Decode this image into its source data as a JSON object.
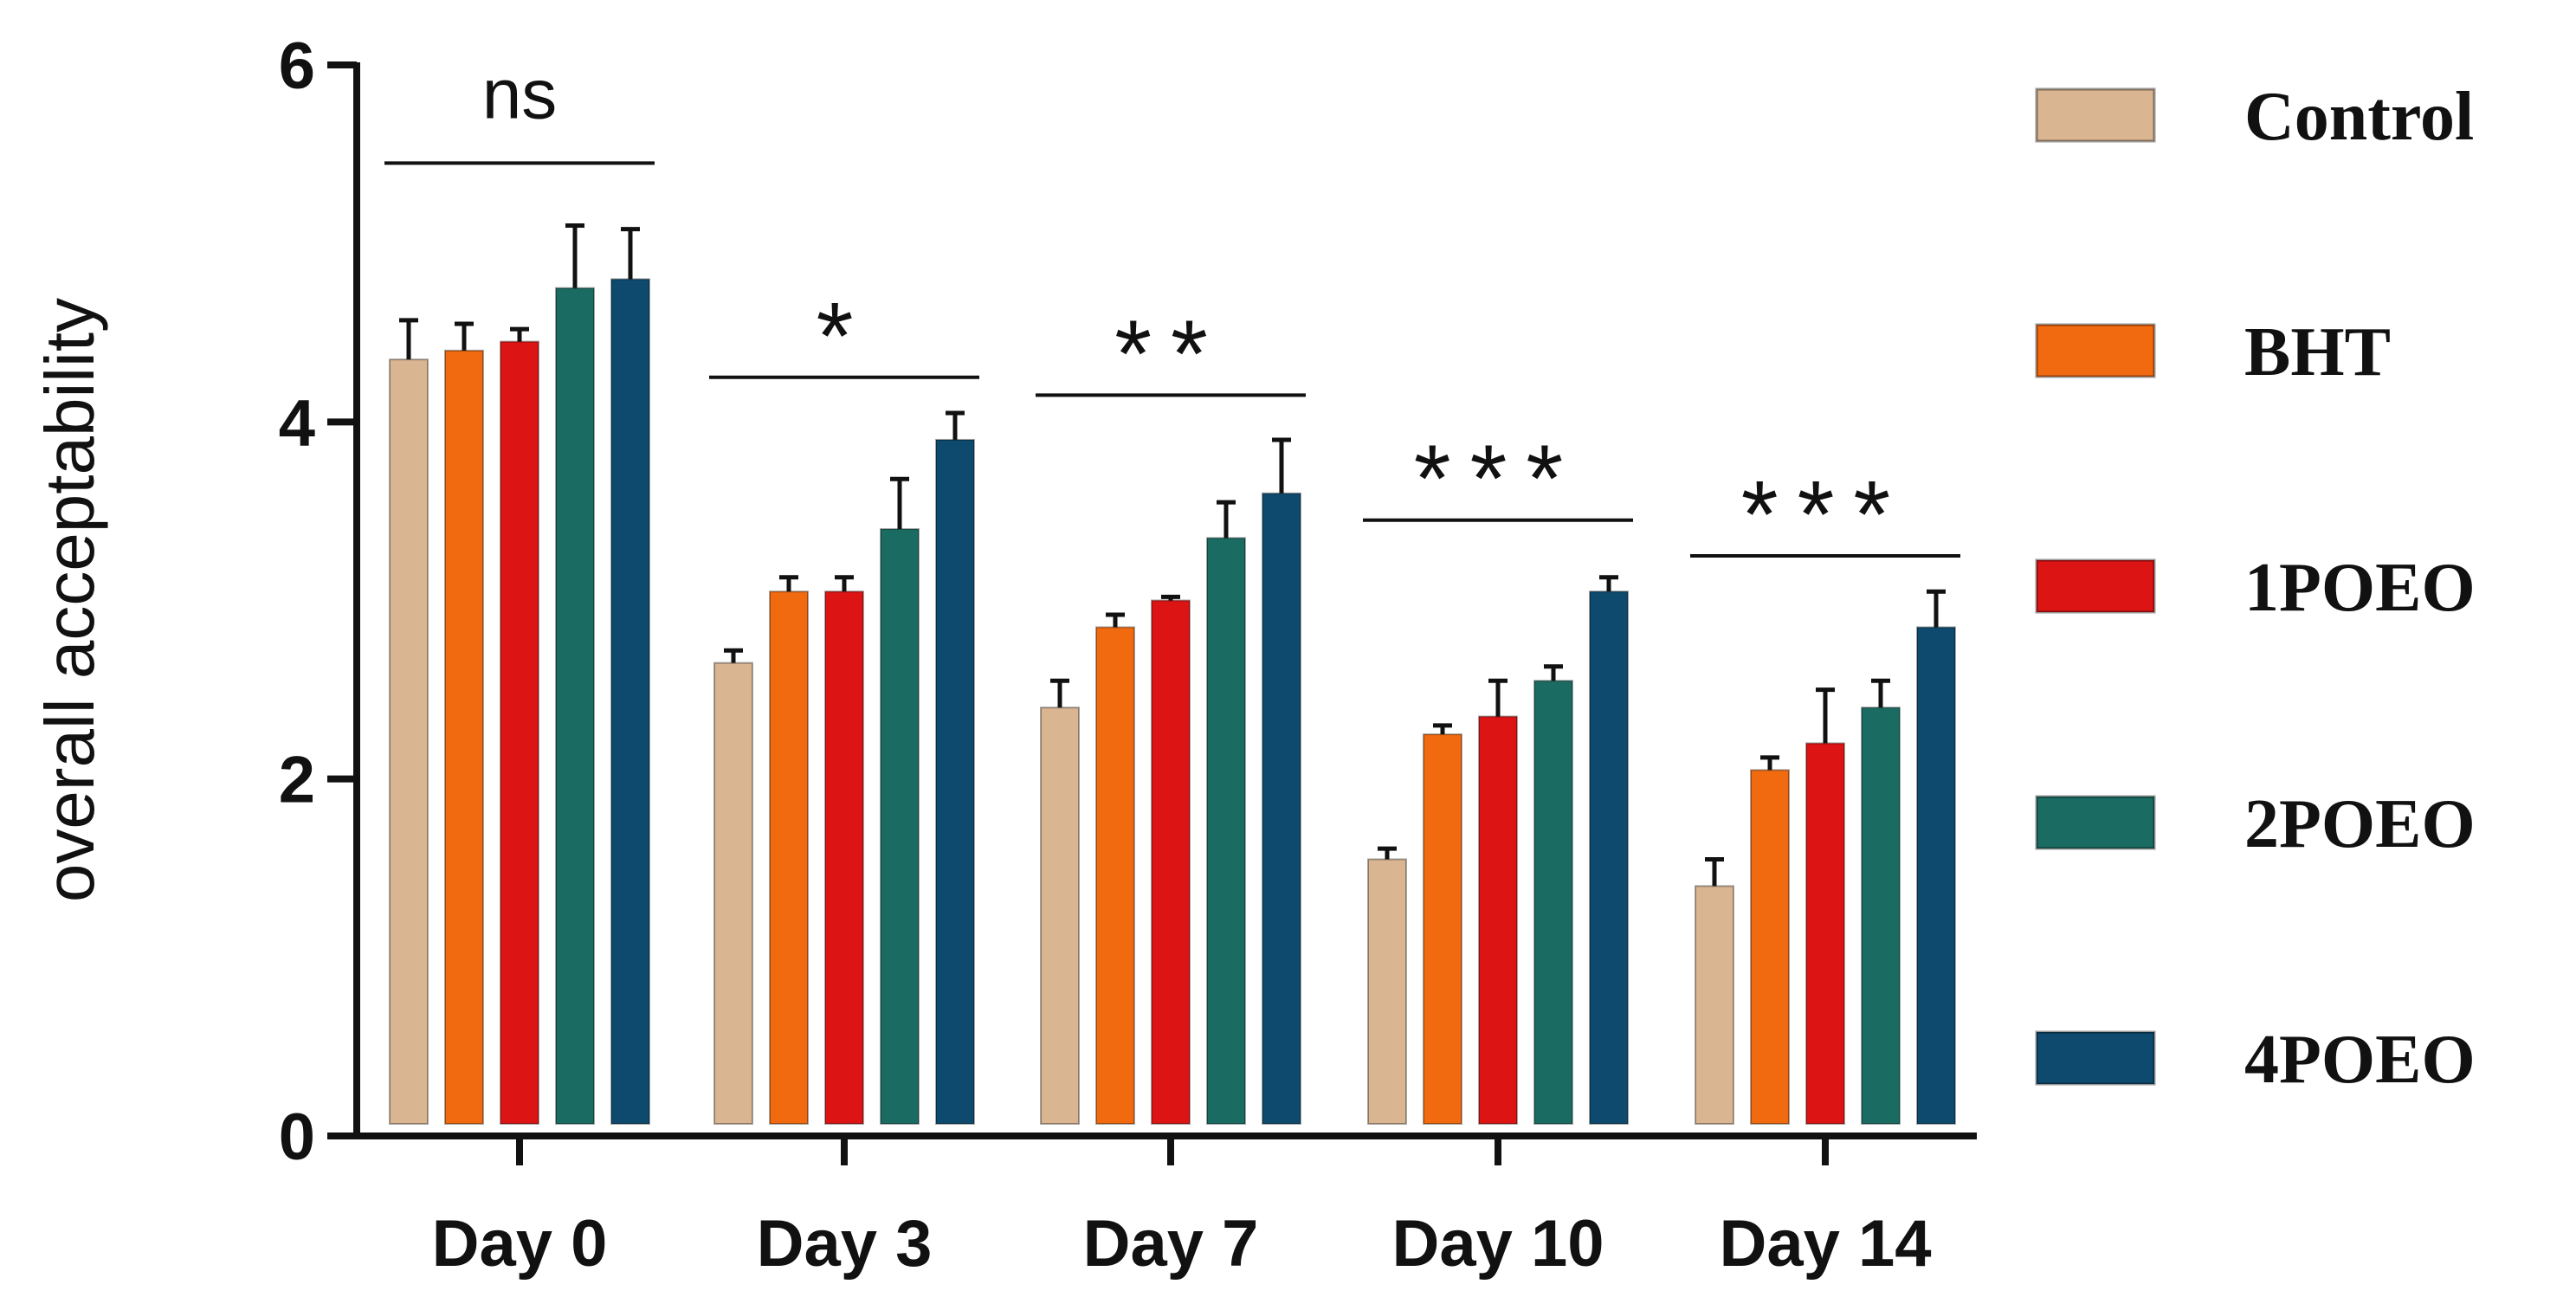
{
  "chart_data": {
    "type": "bar",
    "title": "",
    "xlabel": "",
    "ylabel": "overall acceptability",
    "ylim": [
      0,
      6
    ],
    "yticks": [
      0,
      2,
      4,
      6
    ],
    "grid": false,
    "legend_position": "right",
    "categories": [
      "Day 0",
      "Day 3",
      "Day 7",
      "Day 10",
      "Day 14"
    ],
    "series": [
      {
        "name": "Control",
        "color": "#d9b591",
        "values": [
          4.35,
          2.65,
          2.4,
          1.55,
          1.4
        ],
        "errors": [
          0.22,
          0.07,
          0.15,
          0.06,
          0.15
        ]
      },
      {
        "name": "BHT",
        "color": "#f26a0f",
        "values": [
          4.4,
          3.05,
          2.85,
          2.25,
          2.05
        ],
        "errors": [
          0.15,
          0.08,
          0.07,
          0.05,
          0.07
        ]
      },
      {
        "name": "1POEO",
        "color": "#dc1414",
        "values": [
          4.45,
          3.05,
          3.0,
          2.35,
          2.2
        ],
        "errors": [
          0.07,
          0.08,
          0.02,
          0.2,
          0.3
        ]
      },
      {
        "name": "2POEO",
        "color": "#1a6b62",
        "values": [
          4.75,
          3.4,
          3.35,
          2.55,
          2.4
        ],
        "errors": [
          0.35,
          0.28,
          0.2,
          0.08,
          0.15
        ]
      },
      {
        "name": "4POEO",
        "color": "#0d4a6e",
        "values": [
          4.8,
          3.9,
          3.6,
          3.05,
          2.85
        ],
        "errors": [
          0.28,
          0.15,
          0.3,
          0.08,
          0.2
        ]
      }
    ],
    "annotations": [
      {
        "category": "Day 0",
        "text": "ns",
        "level": 5.45
      },
      {
        "category": "Day 3",
        "text": "*",
        "level": 4.25
      },
      {
        "category": "Day 7",
        "text": "**",
        "level": 4.15
      },
      {
        "category": "Day 10",
        "text": "***",
        "level": 3.45
      },
      {
        "category": "Day 14",
        "text": "***",
        "level": 3.25
      }
    ]
  }
}
